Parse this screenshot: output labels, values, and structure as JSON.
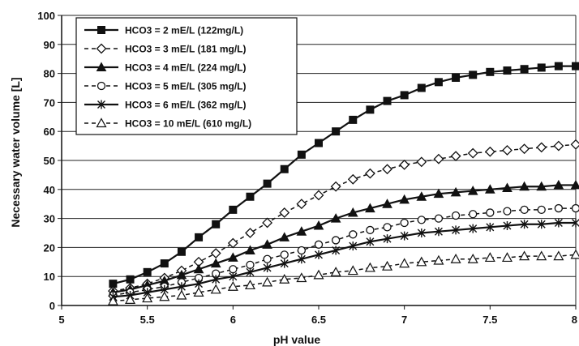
{
  "chart_data": {
    "type": "line",
    "title": "",
    "xlabel": "pH value",
    "ylabel": "Necessary water volume [L]",
    "xlim": [
      5,
      8
    ],
    "ylim": [
      0,
      100
    ],
    "x_ticks": [
      "5",
      "5.5",
      "6",
      "6.5",
      "7",
      "7.5",
      "8"
    ],
    "y_ticks": [
      "0",
      "10",
      "20",
      "30",
      "40",
      "50",
      "60",
      "70",
      "80",
      "90",
      "100"
    ],
    "grid": "horizontal",
    "legend_position": "top-left",
    "x": [
      5.3,
      5.4,
      5.5,
      5.6,
      5.7,
      5.8,
      5.9,
      6.0,
      6.1,
      6.2,
      6.3,
      6.4,
      6.5,
      6.6,
      6.7,
      6.8,
      6.9,
      7.0,
      7.1,
      7.2,
      7.3,
      7.4,
      7.5,
      7.6,
      7.7,
      7.8,
      7.9,
      8.0
    ],
    "series": [
      {
        "name": "HCO3 = 2 mE/L (122mg/L)",
        "style": "solid",
        "marker": "square-filled",
        "values": [
          7.5,
          9.0,
          11.5,
          14.5,
          18.5,
          23.5,
          28.0,
          33.0,
          37.5,
          42.0,
          47.0,
          52.0,
          56.0,
          60.0,
          64.0,
          67.5,
          70.5,
          72.5,
          75.0,
          77.0,
          78.5,
          79.5,
          80.5,
          81.0,
          81.5,
          82.0,
          82.5,
          82.5
        ]
      },
      {
        "name": "HCO3 = 3 mE/L (181 mg/L)",
        "style": "dashed",
        "marker": "diamond-open",
        "values": [
          5.0,
          6.0,
          7.5,
          9.5,
          12.0,
          15.0,
          18.0,
          21.5,
          25.0,
          28.5,
          32.0,
          35.0,
          38.0,
          41.0,
          43.5,
          45.5,
          47.0,
          48.5,
          49.5,
          50.5,
          51.5,
          52.5,
          53.0,
          53.5,
          54.0,
          54.5,
          55.0,
          55.5
        ]
      },
      {
        "name": "HCO3 = 4 mE/L (224 mg/L)",
        "style": "solid",
        "marker": "triangle-filled",
        "values": [
          4.5,
          5.5,
          7.0,
          8.5,
          10.5,
          12.5,
          14.5,
          16.5,
          19.0,
          21.0,
          23.5,
          25.5,
          27.5,
          30.0,
          32.0,
          33.5,
          35.0,
          36.5,
          37.5,
          38.5,
          39.0,
          39.5,
          40.0,
          40.5,
          41.0,
          41.0,
          41.5,
          41.5
        ]
      },
      {
        "name": "HCO3 = 5 mE/L (305 mg/L)",
        "style": "dashed",
        "marker": "circle-open",
        "values": [
          3.5,
          4.5,
          5.5,
          6.5,
          8.0,
          9.5,
          11.0,
          12.5,
          14.0,
          16.0,
          17.5,
          19.0,
          21.0,
          22.5,
          24.5,
          26.0,
          27.0,
          28.5,
          29.5,
          30.0,
          31.0,
          31.5,
          32.0,
          32.5,
          33.0,
          33.0,
          33.5,
          33.5
        ]
      },
      {
        "name": "HCO3 = 6 mE/L (362 mg/L)",
        "style": "solid",
        "marker": "asterisk",
        "values": [
          3.0,
          3.5,
          4.5,
          5.5,
          6.5,
          7.5,
          9.0,
          10.0,
          11.5,
          13.0,
          14.5,
          16.0,
          17.5,
          19.0,
          20.5,
          22.0,
          23.0,
          24.0,
          25.0,
          25.5,
          26.0,
          26.5,
          27.0,
          27.5,
          28.0,
          28.0,
          28.5,
          28.5
        ]
      },
      {
        "name": "HCO3 = 10 mE/L (610 mg/L)",
        "style": "dashed",
        "marker": "triangle-open",
        "values": [
          1.5,
          2.0,
          2.5,
          3.0,
          3.5,
          4.5,
          5.5,
          6.5,
          7.0,
          8.0,
          9.0,
          9.5,
          10.5,
          11.5,
          12.0,
          13.0,
          13.5,
          14.5,
          15.0,
          15.5,
          16.0,
          16.0,
          16.5,
          16.5,
          17.0,
          17.0,
          17.0,
          17.5
        ]
      }
    ]
  }
}
